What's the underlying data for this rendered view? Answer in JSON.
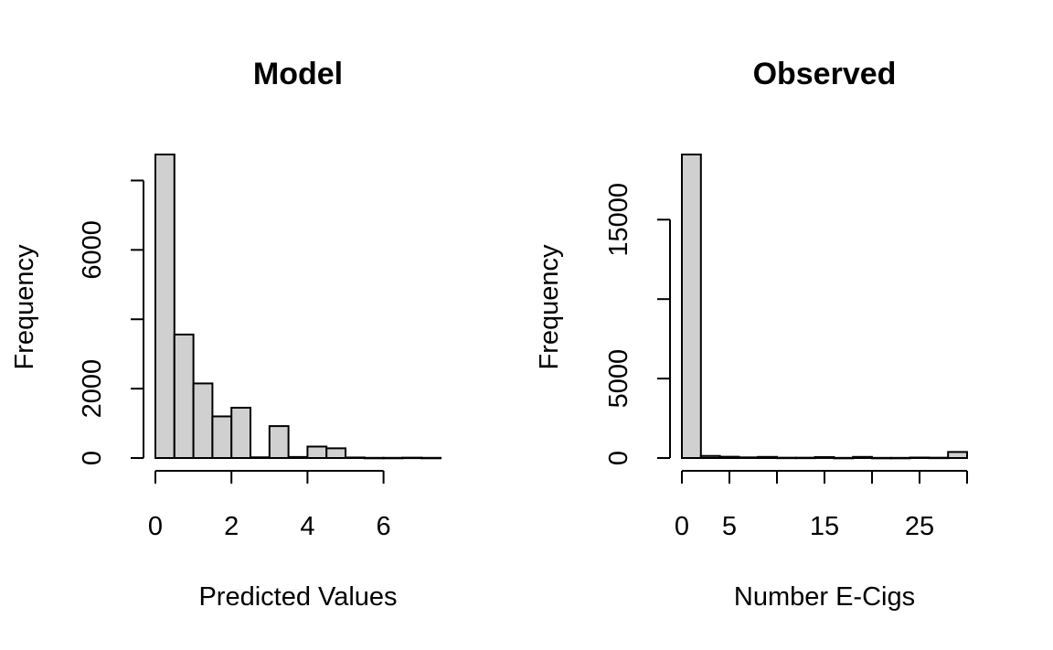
{
  "chart_data": [
    {
      "type": "bar",
      "title": "Model",
      "xlabel": "Predicted Values",
      "ylabel": "Frequency",
      "xlim": [
        0,
        7.5
      ],
      "ylim": [
        0,
        8800
      ],
      "x_ticks": [
        0,
        2,
        4,
        6
      ],
      "x_tick_labels": [
        "0",
        "2",
        "4",
        "6"
      ],
      "y_ticks": [
        0,
        2000,
        4000,
        6000,
        8000
      ],
      "y_tick_labels": [
        "0",
        "2000",
        "",
        "6000",
        ""
      ],
      "bin_width": 0.5,
      "bins": [
        {
          "x0": 0.0,
          "x1": 0.5,
          "count": 8750
        },
        {
          "x0": 0.5,
          "x1": 1.0,
          "count": 3560
        },
        {
          "x0": 1.0,
          "x1": 1.5,
          "count": 2150
        },
        {
          "x0": 1.5,
          "x1": 2.0,
          "count": 1200
        },
        {
          "x0": 2.0,
          "x1": 2.5,
          "count": 1450
        },
        {
          "x0": 2.5,
          "x1": 3.0,
          "count": 20
        },
        {
          "x0": 3.0,
          "x1": 3.5,
          "count": 920
        },
        {
          "x0": 3.5,
          "x1": 4.0,
          "count": 30
        },
        {
          "x0": 4.0,
          "x1": 4.5,
          "count": 330
        },
        {
          "x0": 4.5,
          "x1": 5.0,
          "count": 280
        },
        {
          "x0": 5.0,
          "x1": 5.5,
          "count": 15
        },
        {
          "x0": 5.5,
          "x1": 6.0,
          "count": 5
        },
        {
          "x0": 6.0,
          "x1": 6.5,
          "count": 5
        },
        {
          "x0": 6.5,
          "x1": 7.0,
          "count": 10
        },
        {
          "x0": 7.0,
          "x1": 7.5,
          "count": 5
        }
      ]
    },
    {
      "type": "bar",
      "title": "Observed",
      "xlabel": "Number E-Cigs",
      "ylabel": "Frequency",
      "xlim": [
        0,
        30
      ],
      "ylim": [
        0,
        19000
      ],
      "x_ticks": [
        0,
        5,
        10,
        15,
        20,
        25,
        30
      ],
      "x_tick_labels": [
        "0",
        "5",
        "",
        "15",
        "",
        "25",
        ""
      ],
      "y_ticks": [
        0,
        5000,
        10000,
        15000
      ],
      "y_tick_labels": [
        "0",
        "5000",
        "",
        "15000"
      ],
      "bin_width": 2,
      "bins": [
        {
          "x0": 0,
          "x1": 2,
          "count": 19100
        },
        {
          "x0": 2,
          "x1": 4,
          "count": 130
        },
        {
          "x0": 4,
          "x1": 6,
          "count": 80
        },
        {
          "x0": 6,
          "x1": 8,
          "count": 40
        },
        {
          "x0": 8,
          "x1": 10,
          "count": 70
        },
        {
          "x0": 10,
          "x1": 12,
          "count": 20
        },
        {
          "x0": 12,
          "x1": 14,
          "count": 20
        },
        {
          "x0": 14,
          "x1": 16,
          "count": 60
        },
        {
          "x0": 16,
          "x1": 18,
          "count": 10
        },
        {
          "x0": 18,
          "x1": 20,
          "count": 70
        },
        {
          "x0": 20,
          "x1": 22,
          "count": 10
        },
        {
          "x0": 22,
          "x1": 24,
          "count": 10
        },
        {
          "x0": 24,
          "x1": 26,
          "count": 30
        },
        {
          "x0": 26,
          "x1": 28,
          "count": 20
        },
        {
          "x0": 28,
          "x1": 30,
          "count": 380
        }
      ]
    }
  ]
}
